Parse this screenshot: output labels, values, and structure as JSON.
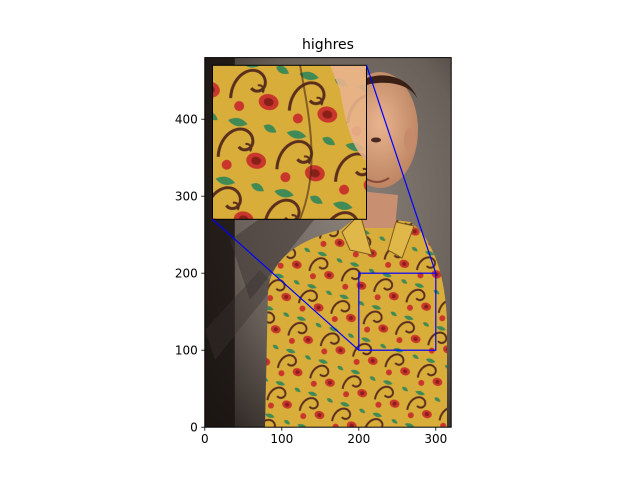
{
  "chart_data": {
    "type": "image",
    "title": "highres",
    "xlabel": "",
    "ylabel": "",
    "xlim": [
      0,
      320
    ],
    "ylim": [
      0,
      480
    ],
    "xticks": [
      0,
      100,
      200,
      300
    ],
    "yticks": [
      0,
      100,
      200,
      300,
      400
    ],
    "image_description": "photograph of a smiling man wearing a yellow shirt with red and green paisley pattern, grey backdrop",
    "zoom_region": {
      "x": [
        200,
        300
      ],
      "y": [
        100,
        200
      ]
    },
    "inset_axes_extent": {
      "x": [
        10,
        210
      ],
      "y": [
        270,
        470
      ]
    },
    "inset_ticks_visible": false,
    "indicator_color": "#0000ff",
    "shirt_colors": [
      "#d9ad3a",
      "#c9362b",
      "#3f8a55",
      "#5a2e1c"
    ],
    "background_color": "#6f6560"
  }
}
